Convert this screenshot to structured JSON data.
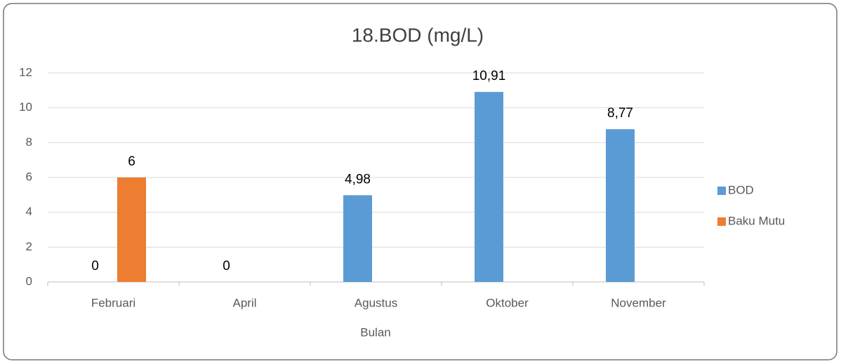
{
  "chart_data": {
    "type": "bar",
    "title": "18.BOD (mg/L)",
    "x_label": "Bulan",
    "categories": [
      "Februari",
      "April",
      "Agustus",
      "Oktober",
      "November"
    ],
    "series": [
      {
        "name": "BOD",
        "color": "#5b9bd5",
        "values": [
          0,
          0,
          4.98,
          10.91,
          8.77
        ],
        "value_labels": [
          "0",
          "0",
          "4,98",
          "10,91",
          "8,77"
        ]
      },
      {
        "name": "Baku Mutu",
        "color": "#ed7d31",
        "values": [
          6,
          null,
          null,
          null,
          null
        ],
        "value_labels": [
          "6",
          null,
          null,
          null,
          null
        ]
      }
    ],
    "ylim": [
      0,
      12
    ],
    "yticks": [
      0,
      2,
      4,
      6,
      8,
      10,
      12
    ],
    "grid": true,
    "legend": "right"
  }
}
